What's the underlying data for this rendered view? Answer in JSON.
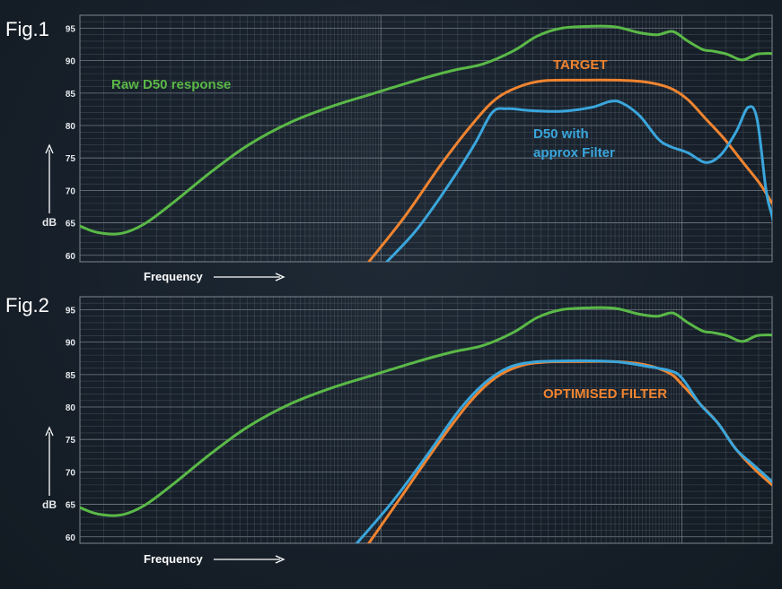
{
  "colors": {
    "raw": "#5ab947",
    "target": "#f08430",
    "filter": "#3aa6dc",
    "background": "#18212b"
  },
  "chart_data": [
    {
      "type": "line",
      "title": "Fig.1",
      "xlabel": "Frequency",
      "ylabel": "dB",
      "x_scale": "log",
      "x_ticks_labeled": false,
      "ylim": [
        59,
        97
      ],
      "yticks": [
        60,
        65,
        70,
        75,
        80,
        85,
        90,
        95
      ],
      "grid": true,
      "annotations": [
        {
          "text": "Raw D50 response",
          "series": "raw"
        },
        {
          "text": "TARGET",
          "series": "target"
        },
        {
          "text": "D50 with",
          "series": "filter"
        },
        {
          "text": "approx Filter",
          "series": "filter"
        }
      ],
      "series": [
        {
          "key": "raw",
          "color": "#5ab947",
          "points": [
            [
              0,
              64.5
            ],
            [
              0.03,
              63.5
            ],
            [
              0.07,
              63.4
            ],
            [
              0.11,
              65
            ],
            [
              0.16,
              68.5
            ],
            [
              0.22,
              73
            ],
            [
              0.28,
              77
            ],
            [
              0.35,
              80.5
            ],
            [
              0.42,
              83
            ],
            [
              0.49,
              85
            ],
            [
              0.56,
              87
            ],
            [
              0.62,
              88.5
            ],
            [
              0.67,
              89.5
            ],
            [
              0.72,
              91.5
            ],
            [
              0.76,
              93.8
            ],
            [
              0.8,
              95
            ],
            [
              0.85,
              95.3
            ],
            [
              0.89,
              95.2
            ],
            [
              0.93,
              94.3
            ],
            [
              0.96,
              94
            ],
            [
              0.985,
              94.5
            ],
            [
              1.01,
              93
            ],
            [
              1.035,
              91.7
            ],
            [
              1.05,
              91.5
            ],
            [
              1.075,
              91
            ],
            [
              1.1,
              90.1
            ],
            [
              1.125,
              91
            ],
            [
              1.15,
              91.1
            ]
          ]
        },
        {
          "key": "target",
          "color": "#f08430",
          "points": [
            [
              0.48,
              59
            ],
            [
              0.54,
              66
            ],
            [
              0.6,
              74
            ],
            [
              0.65,
              80
            ],
            [
              0.69,
              84
            ],
            [
              0.73,
              86
            ],
            [
              0.77,
              86.9
            ],
            [
              0.83,
              87
            ],
            [
              0.89,
              87
            ],
            [
              0.94,
              86.7
            ],
            [
              0.98,
              85.8
            ],
            [
              1.01,
              84
            ],
            [
              1.04,
              81
            ],
            [
              1.07,
              78
            ],
            [
              1.1,
              74.5
            ],
            [
              1.13,
              71
            ],
            [
              1.15,
              68
            ]
          ]
        },
        {
          "key": "filter",
          "color": "#3aa6dc",
          "points": [
            [
              0.51,
              59
            ],
            [
              0.56,
              64
            ],
            [
              0.61,
              70.5
            ],
            [
              0.655,
              77
            ],
            [
              0.685,
              82
            ],
            [
              0.71,
              82.6
            ],
            [
              0.75,
              82.3
            ],
            [
              0.8,
              82.2
            ],
            [
              0.85,
              82.8
            ],
            [
              0.88,
              83.7
            ],
            [
              0.9,
              83.5
            ],
            [
              0.93,
              81.5
            ],
            [
              0.96,
              78
            ],
            [
              0.98,
              76.8
            ],
            [
              1.01,
              75.8
            ],
            [
              1.04,
              74.3
            ],
            [
              1.065,
              75.5
            ],
            [
              1.09,
              79
            ],
            [
              1.11,
              82.8
            ],
            [
              1.125,
              81
            ],
            [
              1.14,
              70
            ],
            [
              1.15,
              66
            ],
            [
              1.16,
              62
            ],
            [
              1.17,
              59.7
            ]
          ]
        }
      ]
    },
    {
      "type": "line",
      "title": "Fig.2",
      "xlabel": "Frequency",
      "ylabel": "dB",
      "x_scale": "log",
      "x_ticks_labeled": false,
      "ylim": [
        59,
        97
      ],
      "yticks": [
        60,
        65,
        70,
        75,
        80,
        85,
        90,
        95
      ],
      "grid": true,
      "annotations": [
        {
          "text": "OPTIMISED FILTER",
          "series": "target"
        }
      ],
      "series": [
        {
          "key": "raw",
          "color": "#5ab947",
          "points": [
            [
              0,
              64.5
            ],
            [
              0.03,
              63.5
            ],
            [
              0.07,
              63.4
            ],
            [
              0.11,
              65
            ],
            [
              0.16,
              68.5
            ],
            [
              0.22,
              73
            ],
            [
              0.28,
              77
            ],
            [
              0.35,
              80.5
            ],
            [
              0.42,
              83
            ],
            [
              0.49,
              85
            ],
            [
              0.56,
              87
            ],
            [
              0.62,
              88.5
            ],
            [
              0.67,
              89.5
            ],
            [
              0.72,
              91.5
            ],
            [
              0.76,
              93.8
            ],
            [
              0.8,
              95
            ],
            [
              0.85,
              95.3
            ],
            [
              0.89,
              95.2
            ],
            [
              0.93,
              94.3
            ],
            [
              0.96,
              94
            ],
            [
              0.985,
              94.5
            ],
            [
              1.01,
              93
            ],
            [
              1.035,
              91.7
            ],
            [
              1.05,
              91.5
            ],
            [
              1.075,
              91
            ],
            [
              1.1,
              90.1
            ],
            [
              1.125,
              91
            ],
            [
              1.15,
              91.1
            ]
          ]
        },
        {
          "key": "target",
          "color": "#f08430",
          "points": [
            [
              0.48,
              59
            ],
            [
              0.54,
              67
            ],
            [
              0.6,
              75
            ],
            [
              0.65,
              81
            ],
            [
              0.69,
              84.5
            ],
            [
              0.73,
              86.3
            ],
            [
              0.77,
              86.9
            ],
            [
              0.83,
              87
            ],
            [
              0.89,
              87
            ],
            [
              0.94,
              86.5
            ],
            [
              0.98,
              85.2
            ],
            [
              1.0,
              83.5
            ],
            [
              1.03,
              80.5
            ],
            [
              1.06,
              77.5
            ],
            [
              1.09,
              73.5
            ],
            [
              1.12,
              70.5
            ],
            [
              1.15,
              68
            ]
          ]
        },
        {
          "key": "filter",
          "color": "#3aa6dc",
          "points": [
            [
              0.46,
              59
            ],
            [
              0.52,
              65.5
            ],
            [
              0.58,
              73
            ],
            [
              0.63,
              79.5
            ],
            [
              0.67,
              83.5
            ],
            [
              0.71,
              86
            ],
            [
              0.75,
              86.9
            ],
            [
              0.8,
              87.1
            ],
            [
              0.86,
              87.1
            ],
            [
              0.9,
              86.9
            ],
            [
              0.94,
              86.3
            ],
            [
              0.98,
              85.6
            ],
            [
              1.0,
              84.5
            ],
            [
              1.03,
              80.5
            ],
            [
              1.06,
              77.5
            ],
            [
              1.09,
              73.5
            ],
            [
              1.12,
              71
            ],
            [
              1.15,
              68.5
            ]
          ]
        }
      ]
    }
  ]
}
